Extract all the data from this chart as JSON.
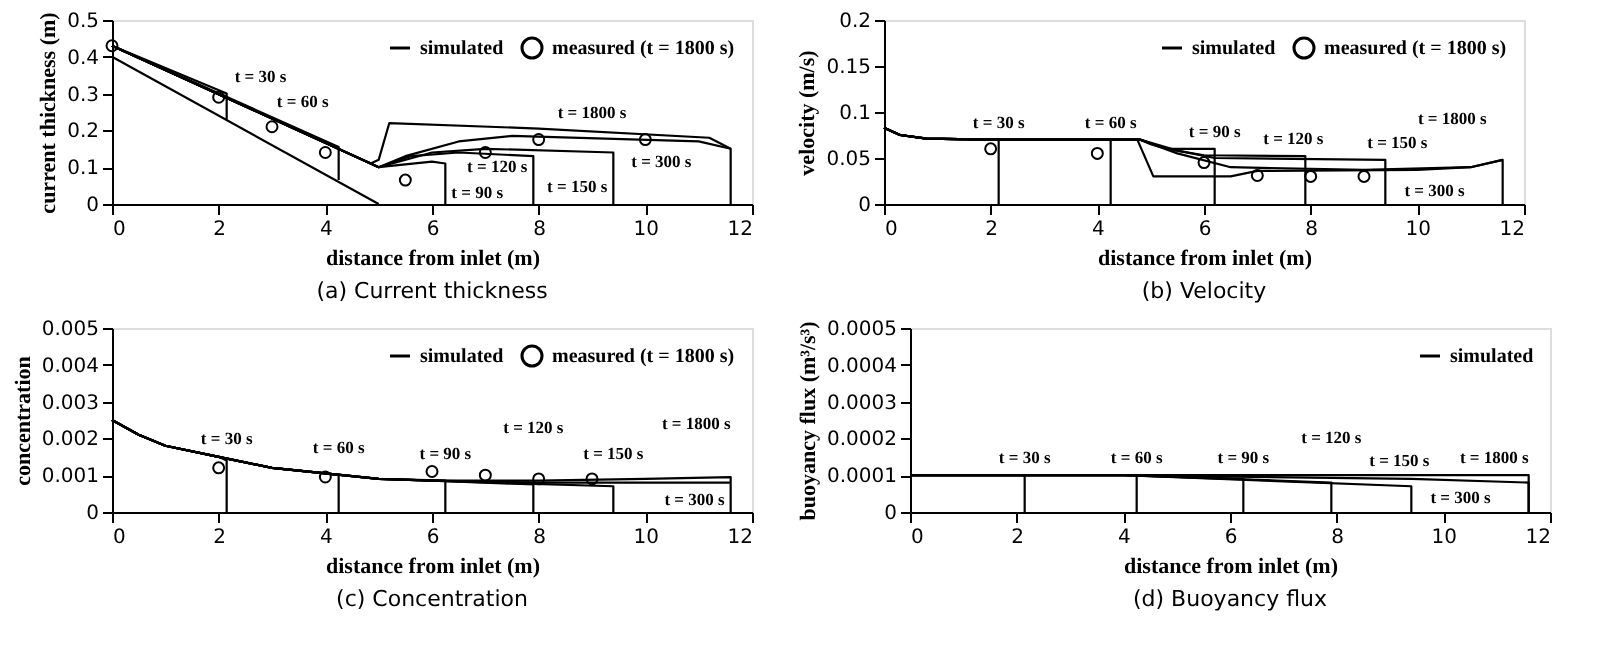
{
  "chart_data": [
    {
      "type": "line",
      "title": "(a) Current thickness",
      "xlabel": "distance from inlet (m)",
      "ylabel": "current thickness (m)",
      "xlim": [
        0,
        12
      ],
      "xticks": [
        0,
        2,
        4,
        6,
        8,
        10,
        12
      ],
      "ylim": [
        0,
        0.5
      ],
      "yticks": [
        0,
        0.1,
        0.2,
        0.3,
        0.4,
        0.5
      ],
      "grid": false,
      "legend": "top right",
      "series": [
        {
          "name": "simulated",
          "color": "#000000",
          "x": [
            0,
            4.85,
            5.0,
            5.2,
            8,
            11.2,
            11.6,
            11.6
          ],
          "values": [
            0.43,
            0.11,
            0.12,
            0.22,
            0.205,
            0.18,
            0.15,
            0
          ]
        },
        {
          "color": "#000000",
          "x": [
            0,
            5
          ],
          "values": [
            0.4,
            0
          ]
        },
        {
          "color": "#000000",
          "x": [
            0,
            2.15,
            2.15
          ],
          "values": [
            0.43,
            0.3,
            0.23
          ]
        },
        {
          "color": "#000000",
          "x": [
            0,
            4.25,
            4.25
          ],
          "values": [
            0.43,
            0.155,
            0.065
          ]
        },
        {
          "color": "#000000",
          "x": [
            0,
            4.85,
            5.0,
            6.0,
            6.25,
            6.25
          ],
          "values": [
            0.43,
            0.11,
            0.1,
            0.115,
            0.11,
            0
          ]
        },
        {
          "color": "#000000",
          "x": [
            0,
            4.85,
            5.0,
            5.6,
            6.5,
            7.9,
            7.9
          ],
          "values": [
            0.43,
            0.11,
            0.1,
            0.13,
            0.14,
            0.13,
            0
          ]
        },
        {
          "color": "#000000",
          "x": [
            0,
            4.85,
            5.0,
            6.0,
            7.0,
            9.4,
            9.4
          ],
          "values": [
            0.43,
            0.11,
            0.1,
            0.14,
            0.15,
            0.14,
            0
          ]
        },
        {
          "color": "#000000",
          "x": [
            0,
            4.85,
            5.0,
            5.5,
            6.5,
            7.5,
            11.0,
            11.6
          ],
          "values": [
            0.43,
            0.11,
            0.1,
            0.13,
            0.17,
            0.185,
            0.17,
            0.15
          ]
        },
        {
          "type": "scatter",
          "name": "measured (t = 1800 s)",
          "marker": "circle",
          "color": "#000000",
          "x": [
            0,
            2,
            3,
            4,
            5.5,
            7,
            8,
            10
          ],
          "values": [
            0.43,
            0.29,
            0.21,
            0.14,
            0.065,
            0.14,
            0.175,
            0.175
          ]
        }
      ],
      "annotations": [
        {
          "text": "t = 30 s",
          "x": 2.15,
          "y": 0.3
        },
        {
          "text": "t = 60 s",
          "x": 4.25,
          "y": 0.155
        },
        {
          "text": "t = 90 s",
          "x": 6.25,
          "y": 0.05
        },
        {
          "text": "t = 120 s",
          "x": 7.9,
          "y": 0.05
        },
        {
          "text": "t = 150 s",
          "x": 9.4,
          "y": 0.05
        },
        {
          "text": "t = 300 s",
          "x": 10.3,
          "y": 0.165
        },
        {
          "text": "t = 1800 s",
          "x": 9,
          "y": 0.2
        }
      ]
    },
    {
      "type": "line",
      "title": "(b) Velocity",
      "xlabel": "distance from inlet (m)",
      "ylabel": "velocity (m/s)",
      "xlim": [
        0,
        12
      ],
      "xticks": [
        0,
        2,
        4,
        6,
        8,
        10,
        12
      ],
      "ylim": [
        0,
        0.2
      ],
      "yticks": [
        0,
        0.05,
        0.1,
        0.15,
        0.2
      ],
      "grid": false,
      "legend": "top right",
      "series": [
        {
          "name": "simulated",
          "color": "#000000",
          "x": [
            0,
            0.3,
            0.8,
            2,
            4.8,
            5.5,
            6.5,
            9,
            11,
            11.6,
            11.6
          ],
          "values": [
            0.083,
            0.075,
            0.071,
            0.07,
            0.07,
            0.055,
            0.04,
            0.037,
            0.04,
            0.048,
            0
          ]
        },
        {
          "color": "#000000",
          "x": [
            0,
            0.3,
            0.8,
            2,
            2.15,
            2.15
          ],
          "values": [
            0.083,
            0.075,
            0.071,
            0.07,
            0.07,
            0
          ]
        },
        {
          "color": "#000000",
          "x": [
            0,
            0.3,
            0.8,
            2,
            4.25,
            4.25
          ],
          "values": [
            0.083,
            0.075,
            0.071,
            0.07,
            0.07,
            0
          ]
        },
        {
          "color": "#000000",
          "x": [
            0,
            0.3,
            0.8,
            2,
            4.8,
            5.0,
            5.3,
            6.2,
            6.2
          ],
          "values": [
            0.083,
            0.075,
            0.071,
            0.07,
            0.07,
            0.065,
            0.06,
            0.06,
            0
          ]
        },
        {
          "color": "#000000",
          "x": [
            0,
            0.3,
            0.8,
            2,
            4.8,
            5.3,
            6.0,
            7.9,
            7.9
          ],
          "values": [
            0.083,
            0.075,
            0.071,
            0.07,
            0.07,
            0.06,
            0.053,
            0.052,
            0
          ]
        },
        {
          "color": "#000000",
          "x": [
            0,
            0.3,
            0.8,
            2,
            4.8,
            5.5,
            6.2,
            9.4,
            9.4
          ],
          "values": [
            0.083,
            0.075,
            0.071,
            0.07,
            0.07,
            0.058,
            0.05,
            0.048,
            0
          ]
        },
        {
          "color": "#000000",
          "x": [
            0,
            0.3,
            0.8,
            2,
            4.75,
            5.05,
            6.5,
            7,
            10,
            11,
            11.6
          ],
          "values": [
            0.083,
            0.075,
            0.071,
            0.07,
            0.07,
            0.03,
            0.03,
            0.036,
            0.037,
            0.04,
            0.048
          ]
        },
        {
          "type": "scatter",
          "name": "measured (t = 1800 s)",
          "marker": "circle",
          "color": "#000000",
          "x": [
            2,
            4,
            6,
            7,
            8,
            9
          ],
          "values": [
            0.06,
            0.055,
            0.045,
            0.031,
            0.03,
            0.03
          ]
        }
      ],
      "annotations": [
        {
          "text": "t = 30 s",
          "x": 2.15,
          "y": 0.07
        },
        {
          "text": "t = 60 s",
          "x": 4.25,
          "y": 0.07
        },
        {
          "text": "t = 90 s",
          "x": 6.2,
          "y": 0.06
        },
        {
          "text": "t = 120 s",
          "x": 7.9,
          "y": 0.052
        },
        {
          "text": "t = 150 s",
          "x": 9.4,
          "y": 0.048
        },
        {
          "text": "t = 1800 s",
          "x": 11.3,
          "y": 0.044
        },
        {
          "text": "t = 300 s",
          "x": 11,
          "y": 0.035
        }
      ]
    },
    {
      "type": "line",
      "title": "(c) Concentration",
      "xlabel": "distance from inlet (m)",
      "ylabel": "concentration",
      "xlim": [
        0,
        12
      ],
      "xticks": [
        0,
        2,
        4,
        6,
        8,
        10,
        12
      ],
      "ylim": [
        0,
        0.005
      ],
      "yticks": [
        0,
        0.001,
        0.002,
        0.003,
        0.004,
        0.005
      ],
      "grid": false,
      "legend": "top right",
      "series": [
        {
          "name": "simulated",
          "color": "#000000",
          "x": [
            0,
            0.5,
            1,
            2,
            3,
            4,
            5,
            6,
            8,
            10,
            11.6,
            11.6
          ],
          "values": [
            0.0025,
            0.0021,
            0.0018,
            0.0015,
            0.0012,
            0.00105,
            0.0009,
            0.00085,
            0.00085,
            0.0009,
            0.00095,
            0
          ]
        },
        {
          "color": "#000000",
          "x": [
            0,
            0.5,
            1,
            2,
            2.15,
            2.15
          ],
          "values": [
            0.0025,
            0.0021,
            0.0018,
            0.0015,
            0.0014,
            0
          ]
        },
        {
          "color": "#000000",
          "x": [
            0,
            0.5,
            1,
            2,
            3,
            4,
            4.25,
            4.25
          ],
          "values": [
            0.0025,
            0.0021,
            0.0018,
            0.0015,
            0.0012,
            0.00105,
            0.001,
            0
          ]
        },
        {
          "color": "#000000",
          "x": [
            0,
            0.5,
            1,
            2,
            3,
            4,
            5,
            6.25,
            6.25
          ],
          "values": [
            0.0025,
            0.0021,
            0.0018,
            0.0015,
            0.0012,
            0.00105,
            0.0009,
            0.00085,
            0
          ]
        },
        {
          "color": "#000000",
          "x": [
            0,
            0.5,
            1,
            2,
            3,
            4,
            5,
            6,
            7.9,
            7.9
          ],
          "values": [
            0.0025,
            0.0021,
            0.0018,
            0.0015,
            0.0012,
            0.00105,
            0.0009,
            0.00085,
            0.00075,
            0
          ]
        },
        {
          "color": "#000000",
          "x": [
            0,
            0.5,
            1,
            2,
            3,
            4,
            5,
            6,
            9.4,
            9.4
          ],
          "values": [
            0.0025,
            0.0021,
            0.0018,
            0.0015,
            0.0012,
            0.00105,
            0.0009,
            0.00085,
            0.0007,
            0
          ]
        },
        {
          "color": "#000000",
          "x": [
            0,
            0.5,
            1,
            2,
            3,
            4,
            5,
            6,
            8,
            11.6
          ],
          "values": [
            0.0025,
            0.0021,
            0.0018,
            0.0015,
            0.0012,
            0.00105,
            0.0009,
            0.00085,
            0.0008,
            0.0008
          ]
        },
        {
          "type": "scatter",
          "name": "measured (t = 1800 s)",
          "marker": "circle",
          "color": "#000000",
          "x": [
            2,
            4,
            6,
            7,
            8,
            9
          ],
          "values": [
            0.0012,
            0.00095,
            0.0011,
            0.001,
            0.0009,
            0.0009
          ]
        }
      ],
      "annotations": [
        {
          "text": "t = 30 s",
          "x": 2.15,
          "y": 0.0014
        },
        {
          "text": "t = 60 s",
          "x": 4.25,
          "y": 0.001
        },
        {
          "text": "t = 90 s",
          "x": 6.25,
          "y": 0.00085
        },
        {
          "text": "t = 120 s",
          "x": 7.9,
          "y": 0.00085
        },
        {
          "text": "t = 150 s",
          "x": 9.4,
          "y": 0.00085
        },
        {
          "text": "t = 1800 s",
          "x": 11.6,
          "y": 0.00095
        },
        {
          "text": "t = 300 s",
          "x": 11.6,
          "y": 0.0008
        }
      ]
    },
    {
      "type": "line",
      "title": "(d) Buoyancy flux",
      "xlabel": "distance from inlet (m)",
      "ylabel": "buoyancy flux (m³/s³)",
      "xlim": [
        0,
        12
      ],
      "xticks": [
        0,
        2,
        4,
        6,
        8,
        10,
        12
      ],
      "ylim": [
        0,
        0.0005
      ],
      "yticks": [
        0,
        0.0001,
        0.0002,
        0.0003,
        0.0004,
        0.0005
      ],
      "grid": false,
      "legend": "top right",
      "series": [
        {
          "name": "simulated",
          "color": "#000000",
          "x": [
            0,
            11.6,
            11.6
          ],
          "values": [
            0.0001,
            0.0001,
            0
          ]
        },
        {
          "color": "#000000",
          "x": [
            0,
            2.15,
            2.15
          ],
          "values": [
            0.0001,
            0.0001,
            0
          ]
        },
        {
          "color": "#000000",
          "x": [
            0,
            4.25,
            4.25
          ],
          "values": [
            0.0001,
            0.0001,
            0
          ]
        },
        {
          "color": "#000000",
          "x": [
            0,
            4,
            6.25,
            6.25
          ],
          "values": [
            0.0001,
            0.0001,
            9e-05,
            0
          ]
        },
        {
          "color": "#000000",
          "x": [
            0,
            4,
            7.9,
            7.9
          ],
          "values": [
            0.0001,
            0.0001,
            8e-05,
            0
          ]
        },
        {
          "color": "#000000",
          "x": [
            0,
            4,
            9.4,
            9.4
          ],
          "values": [
            0.0001,
            0.0001,
            7e-05,
            0
          ]
        },
        {
          "color": "#000000",
          "x": [
            0,
            4,
            9.4,
            11.6,
            11.6
          ],
          "values": [
            0.0001,
            0.0001,
            9e-05,
            8e-05,
            0
          ]
        }
      ],
      "annotations": [
        {
          "text": "t = 30 s",
          "x": 2.15,
          "y": 0.0001
        },
        {
          "text": "t = 60 s",
          "x": 4.25,
          "y": 0.0001
        },
        {
          "text": "t = 90 s",
          "x": 6.25,
          "y": 9e-05
        },
        {
          "text": "t = 120 s",
          "x": 7.9,
          "y": 8e-05
        },
        {
          "text": "t = 150 s",
          "x": 9.4,
          "y": 7e-05
        },
        {
          "text": "t = 1800 s",
          "x": 11.6,
          "y": 0.0001
        },
        {
          "text": "t = 300 s",
          "x": 11,
          "y": 9e-05
        }
      ]
    }
  ]
}
